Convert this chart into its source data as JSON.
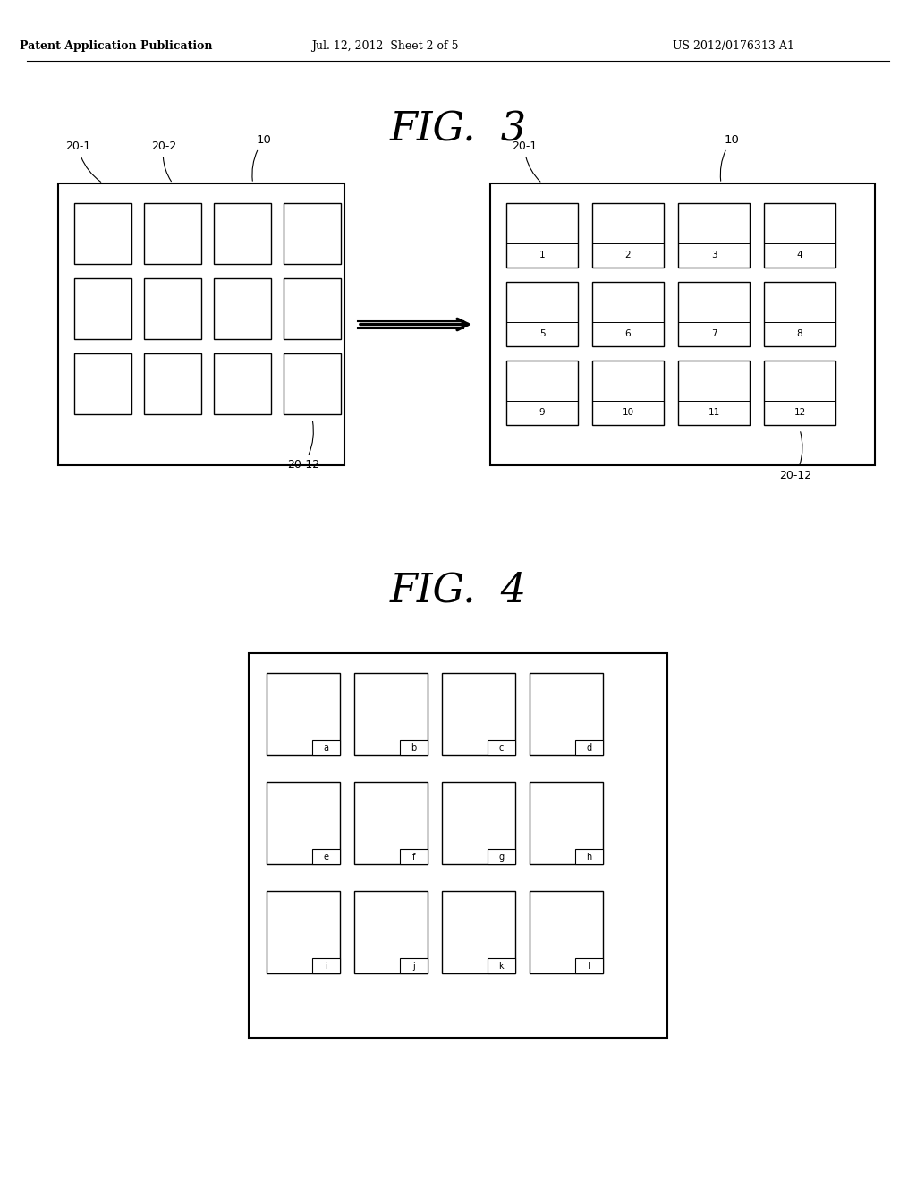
{
  "bg_color": "#ffffff",
  "header_text_left": "Patent Application Publication",
  "header_text_mid": "Jul. 12, 2012  Sheet 2 of 5",
  "header_text_right": "US 2012/0176313 A1",
  "fig3_title": "FIG.  3",
  "fig4_title": "FIG.  4",
  "nums_row1": [
    "1",
    "2",
    "3",
    "4"
  ],
  "nums_row2": [
    "5",
    "6",
    "7",
    "8"
  ],
  "nums_row3": [
    "9",
    "10",
    "11",
    "12"
  ],
  "fig4_row1_labels": [
    "a",
    "b",
    "c",
    "d"
  ],
  "fig4_row2_labels": [
    "e",
    "f",
    "g",
    "h"
  ],
  "fig4_row3_labels": [
    "i",
    "j",
    "k",
    "l"
  ]
}
